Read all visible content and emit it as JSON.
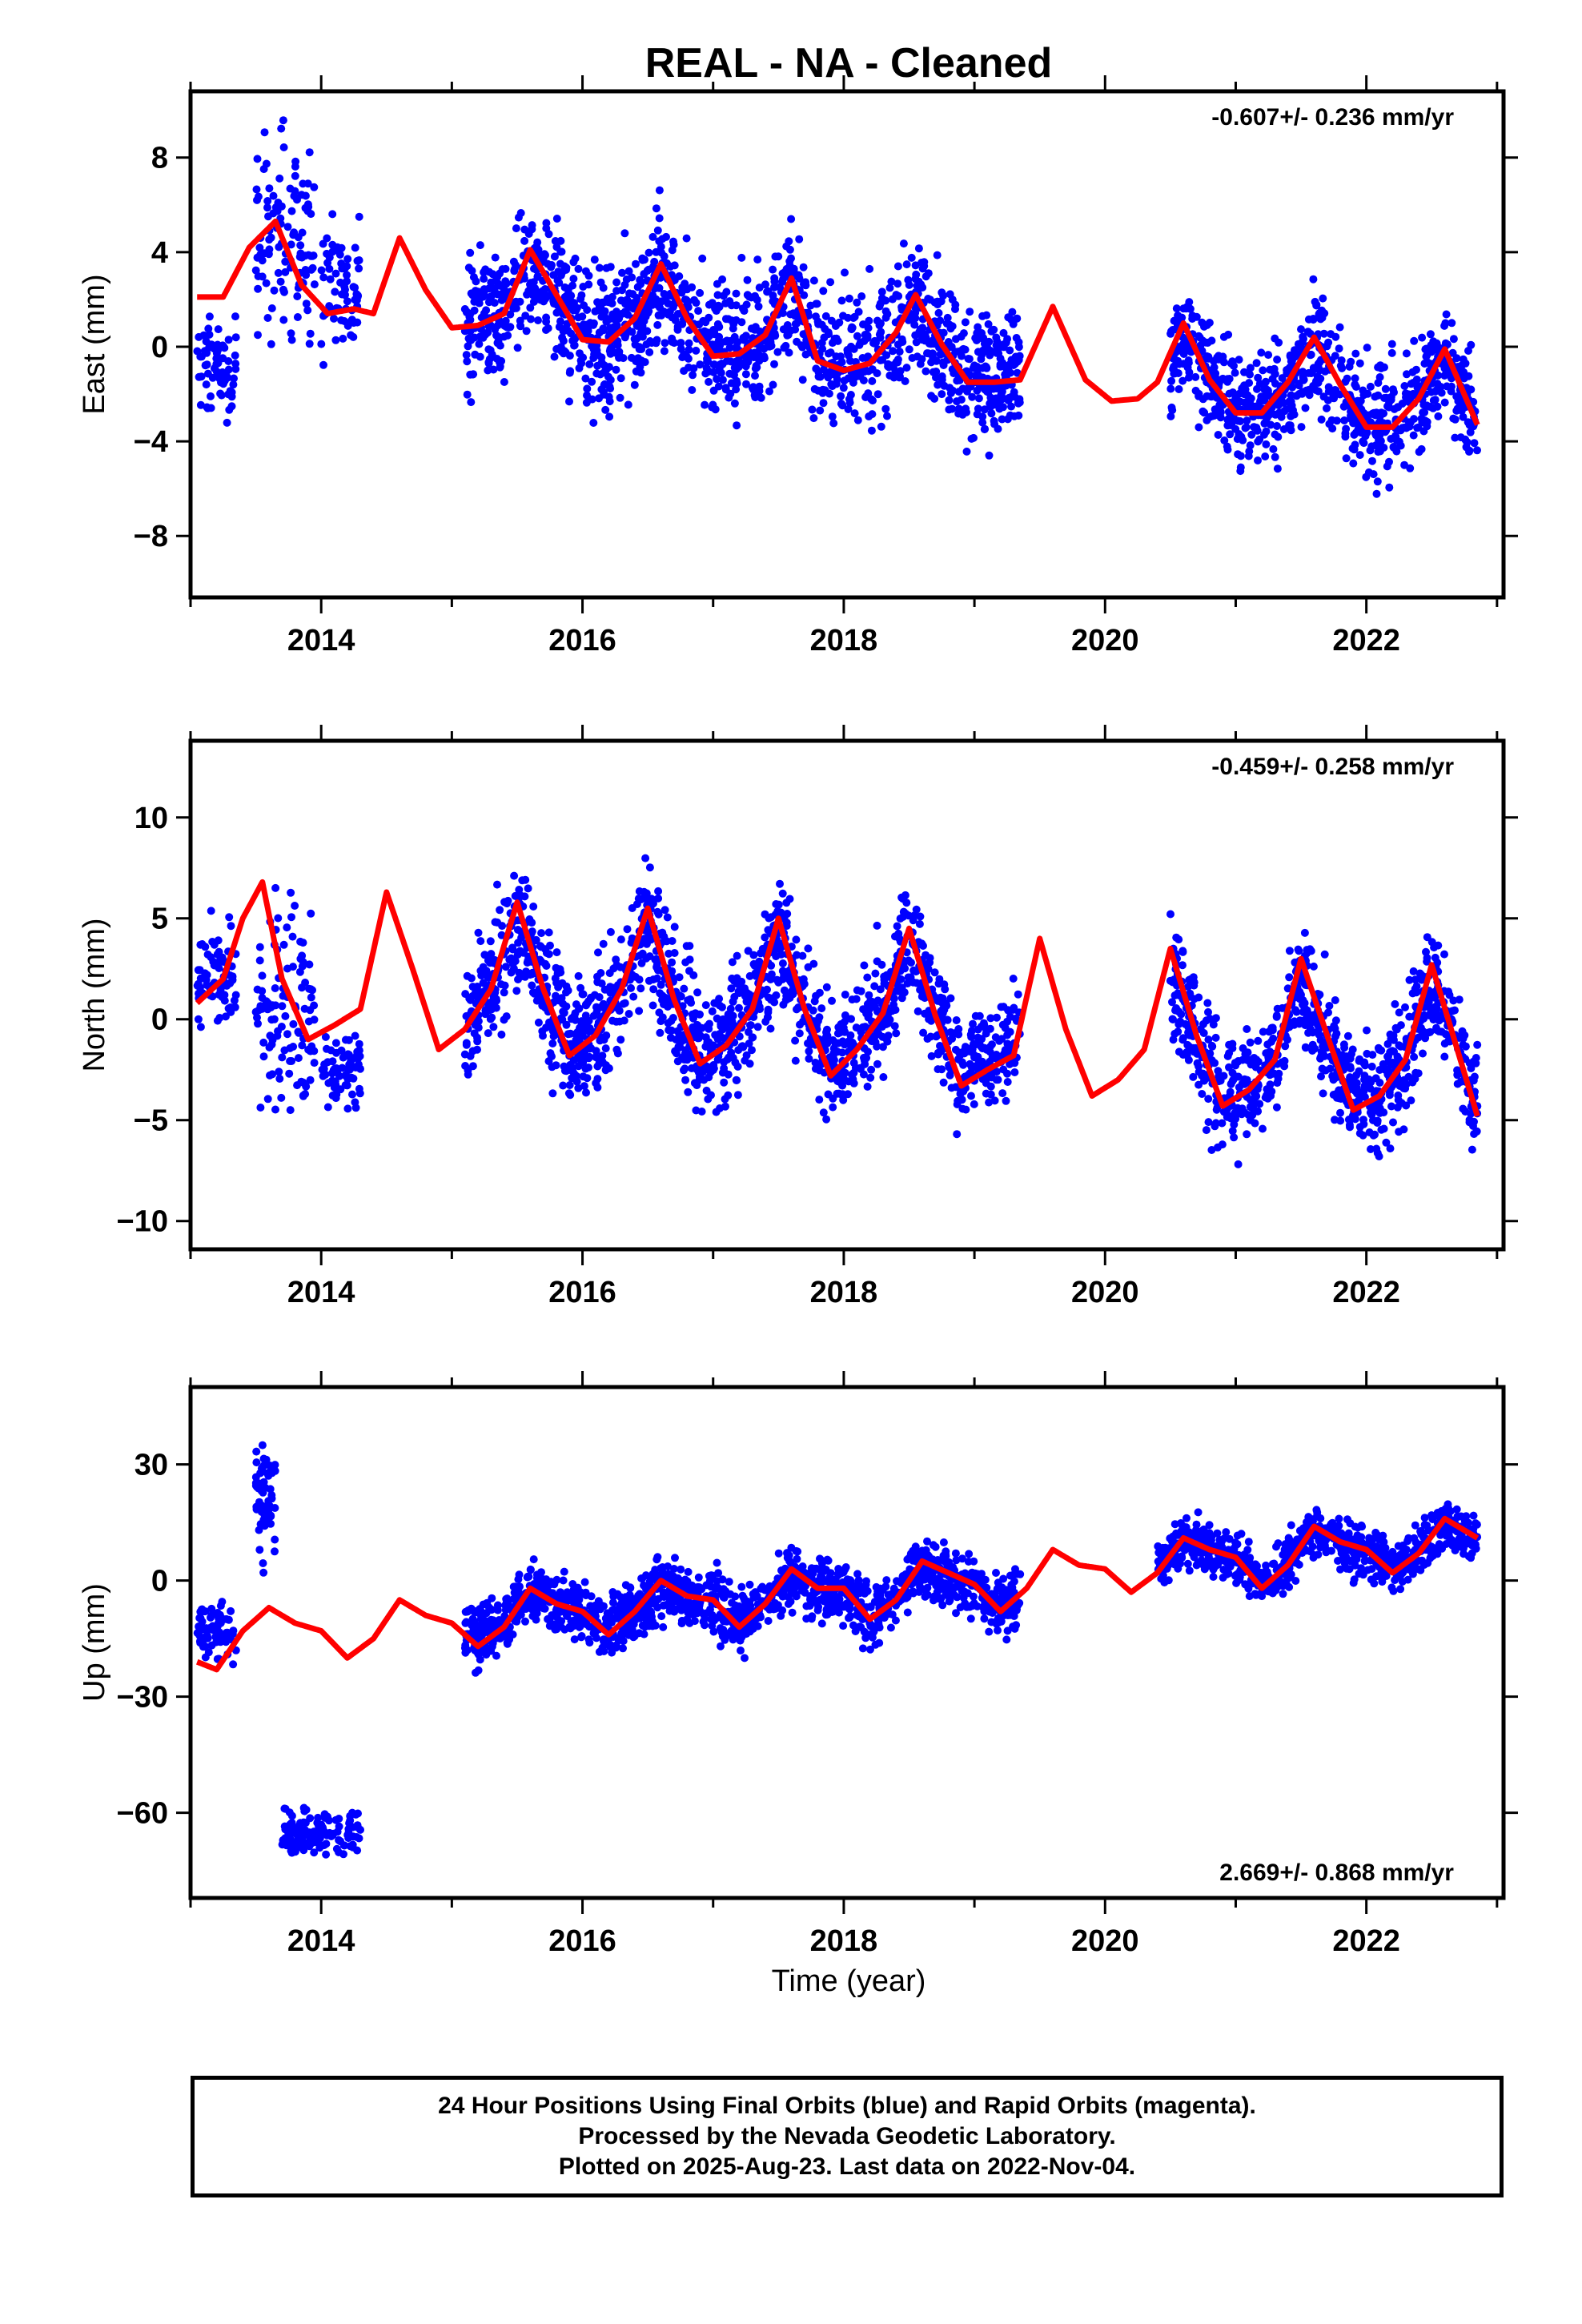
{
  "chart_data": {
    "type": "scatter",
    "title": "REAL  - NA - Cleaned",
    "xlabel": "Time (year)",
    "xlim": [
      2013.0,
      2023.05
    ],
    "xticks": [
      2014,
      2016,
      2018,
      2020,
      2022
    ],
    "point_color": "#0000ff",
    "model_color": "#ff0000",
    "panels": [
      {
        "name": "east",
        "ylabel": "East (mm)",
        "ylim": [
          -10.6,
          10.8
        ],
        "yticks": [
          -8,
          -4,
          0,
          4,
          8
        ],
        "rate": "-0.607+/- 0.236 mm/yr",
        "rate_position": "top-right",
        "observation_clusters": [
          {
            "x_start": 2013.05,
            "x_end": 2013.35,
            "y_center": -1.0,
            "spread": 2.2,
            "count": 70
          },
          {
            "x_start": 2013.5,
            "x_end": 2013.95,
            "y_center": 4.8,
            "spread": 4.5,
            "count": 110
          },
          {
            "x_start": 2014.0,
            "x_end": 2014.3,
            "y_center": 2.5,
            "spread": 3.2,
            "count": 70
          },
          {
            "x_start": 2015.1,
            "x_end": 2019.35,
            "y_center": 0.9,
            "spread": 3.0,
            "count": 1500
          },
          {
            "x_start": 2020.5,
            "x_end": 2022.85,
            "y_center": -2.4,
            "spread": 2.6,
            "count": 800
          }
        ],
        "model_curve": {
          "x": [
            2013.05,
            2013.25,
            2013.45,
            2013.65,
            2013.85,
            2014.05,
            2014.25,
            2014.4,
            2014.6,
            2014.8,
            2015.0,
            2015.2,
            2015.4,
            2015.6,
            2015.8,
            2016.0,
            2016.2,
            2016.4,
            2016.6,
            2016.8,
            2017.0,
            2017.2,
            2017.4,
            2017.6,
            2017.8,
            2018.0,
            2018.2,
            2018.4,
            2018.55,
            2018.75,
            2018.95,
            2019.15,
            2019.35,
            2019.6,
            2019.85,
            2020.05,
            2020.25,
            2020.4,
            2020.6,
            2020.8,
            2021.0,
            2021.2,
            2021.4,
            2021.6,
            2021.8,
            2022.0,
            2022.2,
            2022.4,
            2022.6,
            2022.85
          ],
          "y": [
            2.1,
            2.1,
            4.2,
            5.3,
            2.6,
            1.4,
            1.6,
            1.4,
            4.6,
            2.4,
            0.8,
            0.9,
            1.4,
            4.1,
            2.2,
            0.3,
            0.2,
            1.2,
            3.5,
            1.2,
            -0.4,
            -0.3,
            0.5,
            2.9,
            -0.6,
            -1.0,
            -0.7,
            0.6,
            2.2,
            0.1,
            -1.5,
            -1.5,
            -1.4,
            1.7,
            -1.4,
            -2.3,
            -2.2,
            -1.5,
            1.0,
            -1.4,
            -2.8,
            -2.8,
            -1.5,
            0.4,
            -1.6,
            -3.4,
            -3.4,
            -2.2,
            -0.1,
            -3.3
          ]
        }
      },
      {
        "name": "north",
        "ylabel": "North (mm)",
        "ylim": [
          -11.4,
          13.8
        ],
        "yticks": [
          -10,
          -5,
          0,
          5,
          10
        ],
        "rate": "-0.459+/- 0.258 mm/yr",
        "rate_position": "top-right",
        "observation_clusters": [
          {
            "x_start": 2013.05,
            "x_end": 2013.35,
            "y_center": 2.0,
            "spread": 2.5,
            "count": 70
          },
          {
            "x_start": 2013.5,
            "x_end": 2013.95,
            "y_center": 0.5,
            "spread": 6.0,
            "count": 110
          },
          {
            "x_start": 2014.0,
            "x_end": 2014.3,
            "y_center": -2.5,
            "spread": 1.8,
            "count": 70
          },
          {
            "x_start": 2015.1,
            "x_end": 2019.35,
            "y_center": 1.2,
            "spread": 3.3,
            "count": 1500
          },
          {
            "x_start": 2020.5,
            "x_end": 2022.85,
            "y_center": -2.0,
            "spread": 3.2,
            "count": 800
          }
        ],
        "model_curve": {
          "x": [
            2013.05,
            2013.25,
            2013.4,
            2013.55,
            2013.7,
            2013.9,
            2014.1,
            2014.3,
            2014.5,
            2014.7,
            2014.9,
            2015.1,
            2015.3,
            2015.5,
            2015.7,
            2015.9,
            2016.1,
            2016.3,
            2016.5,
            2016.7,
            2016.9,
            2017.1,
            2017.3,
            2017.5,
            2017.7,
            2017.9,
            2018.1,
            2018.3,
            2018.5,
            2018.7,
            2018.9,
            2019.1,
            2019.3,
            2019.5,
            2019.7,
            2019.9,
            2020.1,
            2020.3,
            2020.5,
            2020.7,
            2020.9,
            2021.1,
            2021.3,
            2021.5,
            2021.7,
            2021.9,
            2022.1,
            2022.3,
            2022.5,
            2022.85
          ],
          "y": [
            0.8,
            2.0,
            5.0,
            6.8,
            2.0,
            -1.0,
            -0.3,
            0.5,
            6.3,
            2.5,
            -1.5,
            -0.5,
            1.5,
            5.8,
            1.5,
            -1.8,
            -0.8,
            1.5,
            5.5,
            1.0,
            -2.2,
            -1.3,
            0.5,
            5.0,
            0.5,
            -2.8,
            -1.5,
            0.3,
            4.5,
            0.2,
            -3.3,
            -2.5,
            -1.8,
            4.0,
            -0.5,
            -3.8,
            -3.0,
            -1.5,
            3.5,
            -0.8,
            -4.3,
            -3.5,
            -2.0,
            3.0,
            -0.8,
            -4.5,
            -3.8,
            -2.0,
            2.7,
            -4.8
          ]
        }
      },
      {
        "name": "up",
        "ylabel": "Up (mm)",
        "ylim": [
          -82,
          50
        ],
        "yticks": [
          -60,
          -30,
          0,
          30
        ],
        "rate": "2.669+/- 0.868 mm/yr",
        "rate_position": "bottom-right",
        "observation_clusters": [
          {
            "x_start": 2013.05,
            "x_end": 2013.35,
            "y_center": -13.0,
            "spread": 8.0,
            "count": 70
          },
          {
            "x_start": 2013.5,
            "x_end": 2013.65,
            "y_center": 20.0,
            "spread": 16.0,
            "count": 55
          },
          {
            "x_start": 2013.7,
            "x_end": 2014.3,
            "y_center": -65.0,
            "spread": 7.0,
            "count": 120
          },
          {
            "x_start": 2015.1,
            "x_end": 2019.35,
            "y_center": -5.0,
            "spread": 8.5,
            "count": 1500
          },
          {
            "x_start": 2020.4,
            "x_end": 2022.85,
            "y_center": 9.0,
            "spread": 7.0,
            "count": 800
          }
        ],
        "model_curve": {
          "x": [
            2013.05,
            2013.2,
            2013.4,
            2013.6,
            2013.8,
            2014.0,
            2014.2,
            2014.4,
            2014.6,
            2014.8,
            2015.0,
            2015.2,
            2015.4,
            2015.6,
            2015.8,
            2016.0,
            2016.2,
            2016.4,
            2016.6,
            2016.8,
            2017.0,
            2017.2,
            2017.4,
            2017.6,
            2017.8,
            2018.0,
            2018.2,
            2018.4,
            2018.6,
            2018.8,
            2019.0,
            2019.2,
            2019.4,
            2019.6,
            2019.8,
            2020.0,
            2020.2,
            2020.4,
            2020.6,
            2020.8,
            2021.0,
            2021.2,
            2021.4,
            2021.6,
            2021.8,
            2022.0,
            2022.2,
            2022.4,
            2022.6,
            2022.85
          ],
          "y": [
            -21,
            -23,
            -13,
            -7,
            -11,
            -13,
            -20,
            -15,
            -5,
            -9,
            -11,
            -17,
            -12,
            -2,
            -6,
            -8,
            -14,
            -8,
            0,
            -4,
            -5,
            -12,
            -6,
            3,
            -2,
            -2,
            -10,
            -5,
            5,
            2,
            -1,
            -8,
            -2,
            8,
            4,
            3,
            -3,
            2,
            11,
            8,
            6,
            -2,
            4,
            14,
            10,
            8,
            2,
            7,
            16,
            11
          ]
        }
      }
    ]
  },
  "footer": {
    "line1": "24 Hour Positions Using Final Orbits (blue) and Rapid Orbits (magenta).",
    "line2": "Processed by the Nevada Geodetic Laboratory.",
    "line3": "Plotted on 2025-Aug-23. Last data on 2022-Nov-04."
  }
}
